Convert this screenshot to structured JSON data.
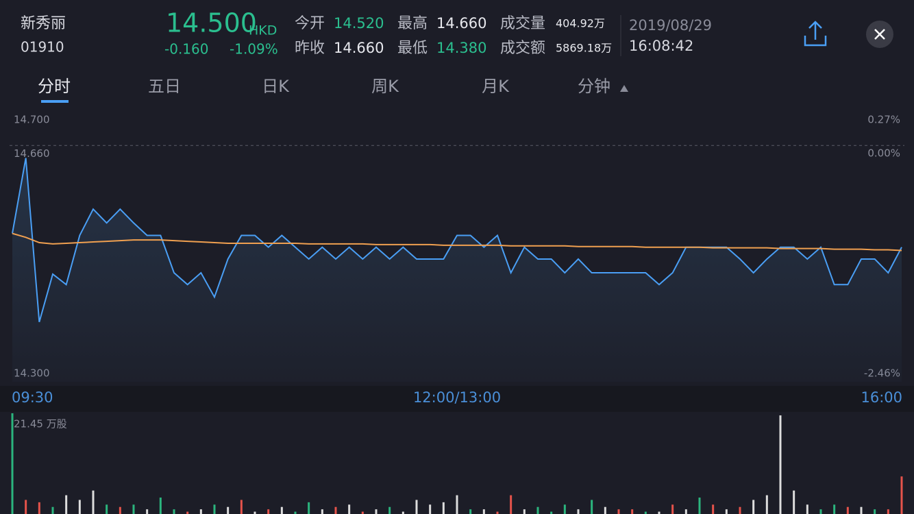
{
  "header": {
    "name": "新秀丽",
    "code": "01910",
    "price": "14.500",
    "currency": "HKD",
    "change": "-0.160",
    "change_pct": "-1.09%",
    "stats": [
      {
        "label": "今开",
        "value": "14.520",
        "tone": "down"
      },
      {
        "label": "昨收",
        "value": "14.660",
        "tone": "flat"
      },
      {
        "label": "最高",
        "value": "14.660",
        "tone": "flat"
      },
      {
        "label": "最低",
        "value": "14.380",
        "tone": "down"
      },
      {
        "label": "成交量",
        "value": "404.92万",
        "tone": "flat"
      },
      {
        "label": "成交额",
        "value": "5869.18万",
        "tone": "flat"
      }
    ],
    "date": "2019/08/29",
    "time": "16:08:42"
  },
  "tabs": [
    "分时",
    "五日",
    "日K",
    "周K",
    "月K",
    "分钟"
  ],
  "chart_data": {
    "type": "line",
    "ylim": [
      14.3,
      14.7
    ],
    "yticks": [
      {
        "value": 14.7,
        "label": "14.700"
      },
      {
        "value": 14.66,
        "label": "14.660"
      },
      {
        "value": 14.3,
        "label": "14.300"
      }
    ],
    "y2lim": [
      -2.46,
      0.27
    ],
    "y2ticks": [
      {
        "value": 0.27,
        "label": "0.27%"
      },
      {
        "value": 0,
        "label": "0.00%"
      },
      {
        "value": -2.46,
        "label": "-2.46%"
      }
    ],
    "x_labels": [
      "09:30",
      "12:00/13:00",
      "16:00"
    ],
    "series": [
      {
        "color": "#4a9ff5",
        "values": [
          14.526,
          14.641,
          14.391,
          14.464,
          14.448,
          14.523,
          14.563,
          14.542,
          14.563,
          14.542,
          14.523,
          14.523,
          14.466,
          14.448,
          14.466,
          14.429,
          14.487,
          14.523,
          14.523,
          14.505,
          14.523,
          14.505,
          14.487,
          14.505,
          14.487,
          14.505,
          14.487,
          14.505,
          14.487,
          14.505,
          14.487,
          14.487,
          14.487,
          14.523,
          14.523,
          14.505,
          14.523,
          14.466,
          14.505,
          14.487,
          14.487,
          14.466,
          14.487,
          14.466,
          14.466,
          14.466,
          14.466,
          14.466,
          14.448,
          14.466,
          14.505,
          14.505,
          14.505,
          14.505,
          14.487,
          14.466,
          14.487,
          14.505,
          14.505,
          14.487,
          14.505,
          14.448,
          14.448,
          14.487,
          14.487,
          14.466,
          14.505
        ]
      },
      {
        "color": "#f0a050",
        "values": [
          14.526,
          14.52,
          14.512,
          14.51,
          14.511,
          14.512,
          14.513,
          14.514,
          14.515,
          14.516,
          14.516,
          14.516,
          14.515,
          14.514,
          14.513,
          14.512,
          14.511,
          14.511,
          14.511,
          14.511,
          14.511,
          14.511,
          14.51,
          14.51,
          14.51,
          14.51,
          14.51,
          14.509,
          14.509,
          14.509,
          14.509,
          14.509,
          14.508,
          14.508,
          14.508,
          14.508,
          14.508,
          14.507,
          14.507,
          14.507,
          14.507,
          14.507,
          14.506,
          14.506,
          14.506,
          14.506,
          14.506,
          14.505,
          14.505,
          14.505,
          14.505,
          14.505,
          14.504,
          14.504,
          14.504,
          14.504,
          14.504,
          14.503,
          14.503,
          14.503,
          14.503,
          14.502,
          14.502,
          14.502,
          14.501,
          14.501,
          14.5
        ]
      }
    ],
    "volume": {
      "vlim": [
        0,
        21.45
      ],
      "vticks": [
        {
          "value": 21.45,
          "label": "21.45 万股"
        }
      ],
      "values": [
        21.45,
        3,
        2.5,
        1.5,
        4,
        3,
        5,
        2,
        1.5,
        2,
        1,
        3.5,
        1,
        0.5,
        1,
        2,
        1.5,
        3,
        0.5,
        1,
        1.5,
        0.5,
        2.5,
        1,
        1.5,
        2,
        0.5,
        1,
        1.5,
        0.5,
        3,
        2,
        2.5,
        4,
        1,
        1,
        0.5,
        4,
        1,
        1.5,
        0.5,
        2,
        1,
        3,
        1.5,
        1,
        1,
        0.5,
        0.5,
        2,
        1,
        3.5,
        2,
        1,
        1.5,
        3,
        4,
        21,
        5,
        2,
        1,
        2,
        1.5,
        1.5,
        1,
        1,
        8
      ],
      "colors": [
        "#2bb57e",
        "#e5534b",
        "#e5534b",
        "#2bb57e",
        "#dddddd",
        "#dddddd",
        "#dddddd",
        "#2bb57e",
        "#e5534b",
        "#2bb57e",
        "#dddddd",
        "#2bb57e",
        "#2bb57e",
        "#e5534b",
        "#dddddd",
        "#2bb57e",
        "#dddddd",
        "#e5534b",
        "#dddddd",
        "#e5534b",
        "#dddddd",
        "#2bb57e",
        "#2bb57e",
        "#dddddd",
        "#e5534b",
        "#dddddd",
        "#e5534b",
        "#dddddd",
        "#2bb57e",
        "#dddddd",
        "#dddddd",
        "#dddddd",
        "#dddddd",
        "#dddddd",
        "#2bb57e",
        "#dddddd",
        "#e5534b",
        "#e5534b",
        "#dddddd",
        "#2bb57e",
        "#2bb57e",
        "#2bb57e",
        "#dddddd",
        "#2bb57e",
        "#dddddd",
        "#e5534b",
        "#e5534b",
        "#2bb57e",
        "#dddddd",
        "#e5534b",
        "#dddddd",
        "#2bb57e",
        "#e5534b",
        "#dddddd",
        "#e5534b",
        "#dddddd",
        "#dddddd",
        "#dddddd",
        "#dddddd",
        "#dddddd",
        "#2bb57e",
        "#2bb57e",
        "#e5534b",
        "#dddddd",
        "#2bb57e",
        "#e5534b",
        "#e5534b"
      ]
    }
  }
}
